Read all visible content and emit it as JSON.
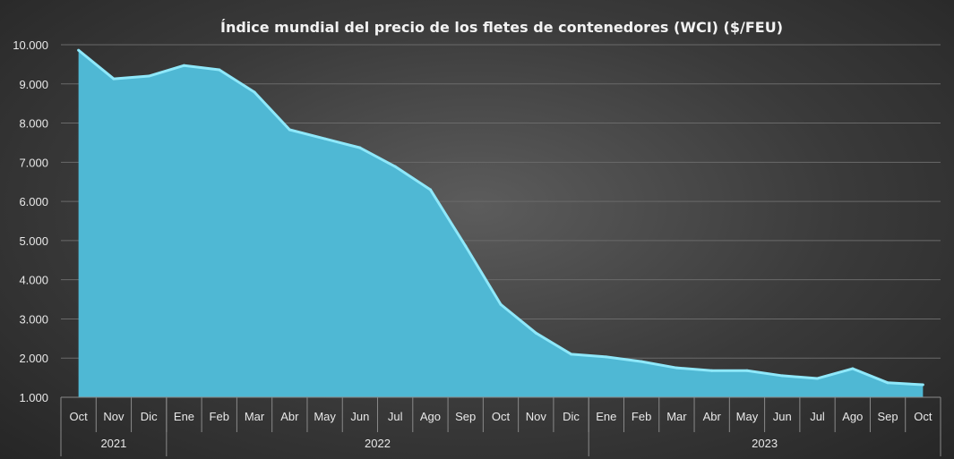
{
  "chart_data": {
    "type": "area",
    "title": "Índice mundial del precio de los fletes de contenedores (WCI) ($/FEU)",
    "xlabel": "",
    "ylabel": "",
    "ylim": [
      1000,
      10000
    ],
    "yticks": [
      "1.000",
      "2.000",
      "3.000",
      "4.000",
      "5.000",
      "6.000",
      "7.000",
      "8.000",
      "9.000",
      "10.000"
    ],
    "ytick_values": [
      1000,
      2000,
      3000,
      4000,
      5000,
      6000,
      7000,
      8000,
      9000,
      10000
    ],
    "grid": true,
    "colors": {
      "fill": "#4fb8d4",
      "line": "#8fe8fa"
    },
    "categories": [
      "Oct",
      "Nov",
      "Dic",
      "Ene",
      "Feb",
      "Mar",
      "Abr",
      "May",
      "Jun",
      "Jul",
      "Ago",
      "Sep",
      "Oct",
      "Nov",
      "Dic",
      "Ene",
      "Feb",
      "Mar",
      "Abr",
      "May",
      "Jun",
      "Jul",
      "Ago",
      "Sep",
      "Oct"
    ],
    "years": [
      {
        "label": "2021",
        "count": 3
      },
      {
        "label": "2022",
        "count": 12
      },
      {
        "label": "2023",
        "count": 10
      }
    ],
    "values": [
      9860,
      9130,
      9200,
      9470,
      9360,
      8790,
      7830,
      7600,
      7370,
      6890,
      6300,
      4860,
      3370,
      2640,
      2100,
      2030,
      1910,
      1750,
      1680,
      1680,
      1550,
      1480,
      1730,
      1370,
      1320
    ]
  }
}
